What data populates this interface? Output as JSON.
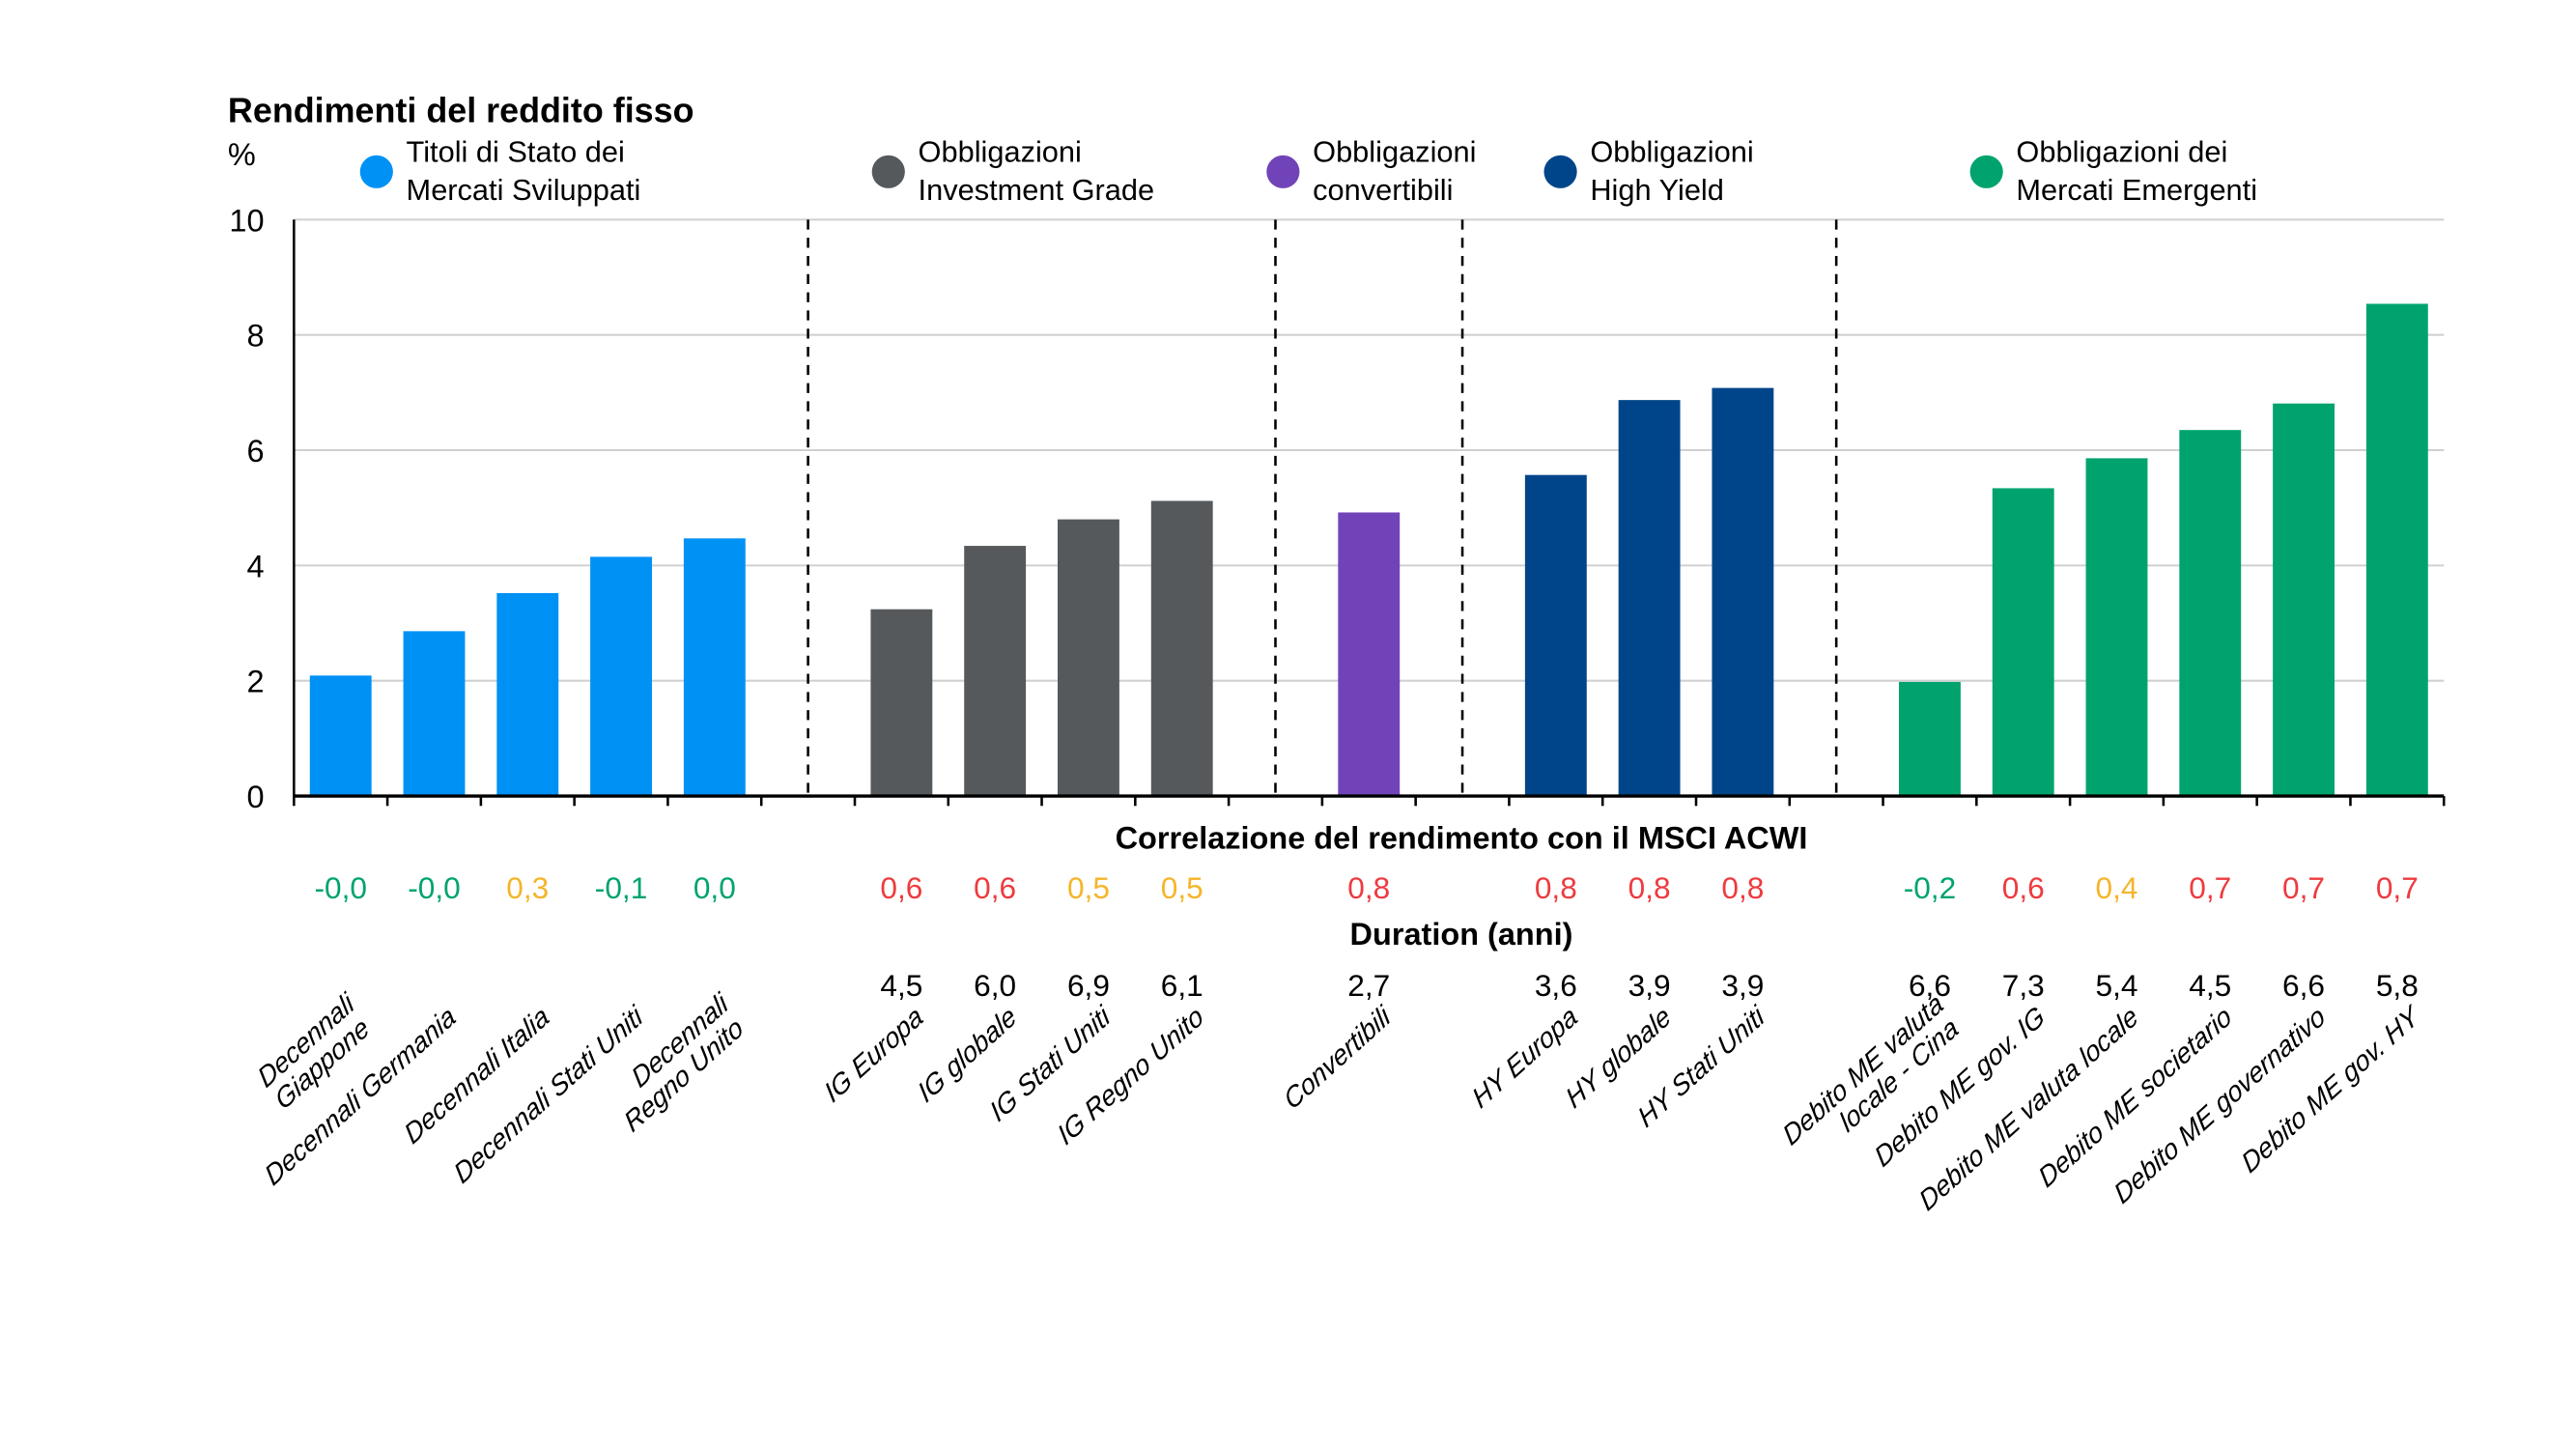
{
  "chart_data": {
    "type": "bar",
    "title": "Rendimenti del reddito fisso",
    "ylabel": "%",
    "ylim": [
      0,
      10
    ],
    "yticks": [
      "0",
      "2",
      "4",
      "6",
      "8",
      "10"
    ],
    "grid": true,
    "legend_placement": "top",
    "groups": [
      {
        "name_lines": [
          "Titoli di Stato dei",
          "Mercati Sviluppati"
        ],
        "color": "#0091f5",
        "categories": [
          [
            "Decennali",
            "Giappone"
          ],
          [
            "Decennali Germania"
          ],
          [
            "Decennali Italia"
          ],
          [
            "Decennali Stati Uniti"
          ],
          [
            "Decennali",
            "Regno Unito"
          ]
        ],
        "values": [
          2.09,
          2.86,
          3.52,
          4.15,
          4.47
        ],
        "correlation": [
          "-0,0",
          "-0,0",
          "0,3",
          "-0,1",
          "0,0"
        ],
        "duration": [
          "",
          "",
          "",
          "",
          ""
        ]
      },
      {
        "name_lines": [
          "Obbligazioni",
          "Investment Grade"
        ],
        "color": "#55595c",
        "categories": [
          [
            "IG Europa"
          ],
          [
            "IG globale"
          ],
          [
            "IG Stati Uniti"
          ],
          [
            "IG Regno Unito"
          ]
        ],
        "values": [
          3.24,
          4.34,
          4.8,
          5.12
        ],
        "correlation": [
          "0,6",
          "0,6",
          "0,5",
          "0,5"
        ],
        "duration": [
          "4,5",
          "6,0",
          "6,9",
          "6,1"
        ]
      },
      {
        "name_lines": [
          "Obbligazioni",
          "convertibili"
        ],
        "color": "#7044b8",
        "categories": [
          [
            "Convertibili"
          ]
        ],
        "values": [
          4.92
        ],
        "correlation": [
          "0,8"
        ],
        "duration": [
          "2,7"
        ]
      },
      {
        "name_lines": [
          "Obbligazioni",
          "High Yield"
        ],
        "color": "#00458a",
        "categories": [
          [
            "HY Europa"
          ],
          [
            "HY globale"
          ],
          [
            "HY Stati Uniti"
          ]
        ],
        "values": [
          5.57,
          6.87,
          7.08
        ],
        "correlation": [
          "0,8",
          "0,8",
          "0,8"
        ],
        "duration": [
          "3,6",
          "3,9",
          "3,9"
        ]
      },
      {
        "name_lines": [
          "Obbligazioni dei",
          "Mercati Emergenti"
        ],
        "color": "#00a36e",
        "categories": [
          [
            "Debito ME valuta",
            "locale - Cina"
          ],
          [
            "Debito ME gov. IG"
          ],
          [
            "Debito ME valuta locale"
          ],
          [
            "Debito ME societario"
          ],
          [
            "Debito ME governativo"
          ],
          [
            "Debito ME gov. HY"
          ]
        ],
        "values": [
          1.98,
          5.34,
          5.86,
          6.35,
          6.81,
          8.54
        ],
        "correlation": [
          "-0,2",
          "0,6",
          "0,4",
          "0,7",
          "0,7",
          "0,7"
        ],
        "duration": [
          "6,6",
          "7,3",
          "5,4",
          "4,5",
          "6,6",
          "5,8"
        ]
      }
    ],
    "correlation_title": "Correlazione del rendimento con il MSCI ACWI",
    "duration_title": "Duration (anni)",
    "correlation_colors": {
      "low": "#00a36e",
      "mid": "#f5b52a",
      "high": "#ee3b3f"
    }
  }
}
